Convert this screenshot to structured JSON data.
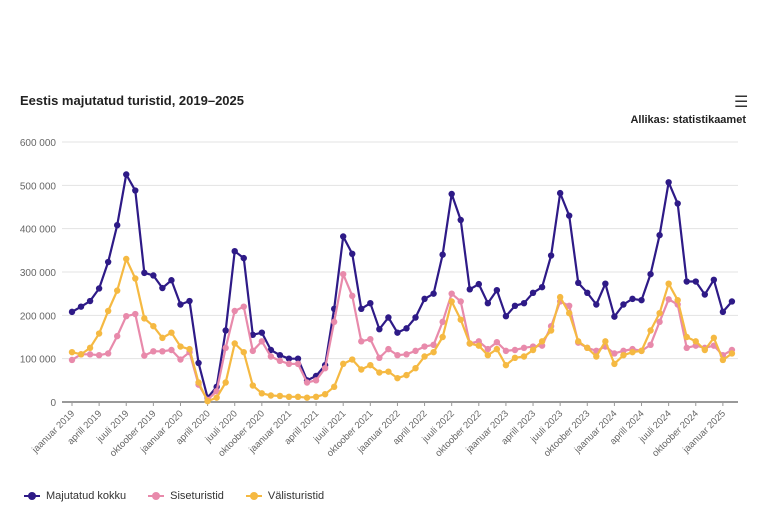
{
  "header": {
    "title": "Eestis majutatud turistid, 2019–2025",
    "source": "Allikas: statistikaamet",
    "menu_icon": "hamburger-menu-icon"
  },
  "chart_data": {
    "type": "line",
    "title": "Eestis majutatud turistid, 2019–2025",
    "xlabel": "",
    "ylabel": "",
    "ylim": [
      0,
      600000
    ],
    "yticks": [
      0,
      100000,
      200000,
      300000,
      400000,
      500000,
      600000
    ],
    "ytick_labels": [
      "0",
      "100 000",
      "200 000",
      "300 000",
      "400 000",
      "500 000",
      "600 000"
    ],
    "x_start": "2019-01",
    "x_end": "2025-02",
    "x_step": "month",
    "xtick_labels": [
      "jaanuar 2019",
      "aprill 2019",
      "juuli 2019",
      "oktoober 2019",
      "jaanuar 2020",
      "aprill 2020",
      "juuli 2020",
      "oktoober 2020",
      "jaanuar 2021",
      "aprill 2021",
      "juuli 2021",
      "oktoober 2021",
      "jaanuar 2022",
      "aprill 2022",
      "juuli 2022",
      "oktoober 2022",
      "jaanuar 2023",
      "aprill 2023",
      "juuli 2023",
      "oktoober 2023",
      "jaanuar 2024",
      "aprill 2024",
      "juuli 2024",
      "oktoober 2024",
      "jaanuar 2025"
    ],
    "grid": true,
    "legend_position": "bottom-left",
    "series": [
      {
        "name": "Majutatud kokku",
        "color": "#2e1a87",
        "values": [
          208000,
          220000,
          233000,
          262000,
          323000,
          408000,
          525000,
          488000,
          298000,
          292000,
          263000,
          281000,
          225000,
          233000,
          90000,
          10000,
          35000,
          165000,
          348000,
          332000,
          155000,
          160000,
          120000,
          108000,
          100000,
          100000,
          50000,
          60000,
          85000,
          215000,
          382000,
          342000,
          215000,
          228000,
          168000,
          195000,
          160000,
          170000,
          195000,
          238000,
          250000,
          340000,
          480000,
          420000,
          260000,
          272000,
          228000,
          258000,
          198000,
          222000,
          228000,
          252000,
          265000,
          338000,
          482000,
          430000,
          275000,
          252000,
          225000,
          273000,
          197000,
          225000,
          238000,
          235000,
          295000,
          385000,
          507000,
          458000,
          278000,
          278000,
          248000,
          282000,
          208000,
          232000
        ]
      },
      {
        "name": "Siseturistid",
        "color": "#e88aab",
        "values": [
          97000,
          110000,
          110000,
          108000,
          112000,
          152000,
          198000,
          203000,
          107000,
          117000,
          117000,
          120000,
          98000,
          115000,
          40000,
          5000,
          25000,
          125000,
          210000,
          220000,
          118000,
          140000,
          105000,
          95000,
          88000,
          88000,
          45000,
          50000,
          78000,
          185000,
          295000,
          245000,
          140000,
          145000,
          102000,
          122000,
          108000,
          110000,
          118000,
          128000,
          132000,
          185000,
          250000,
          232000,
          135000,
          140000,
          122000,
          138000,
          118000,
          120000,
          125000,
          128000,
          130000,
          175000,
          232000,
          222000,
          137000,
          125000,
          118000,
          128000,
          112000,
          118000,
          122000,
          118000,
          132000,
          185000,
          237000,
          225000,
          125000,
          130000,
          125000,
          130000,
          108000,
          120000
        ]
      },
      {
        "name": "Välisturistid",
        "color": "#f5b942",
        "values": [
          115000,
          110000,
          125000,
          158000,
          210000,
          257000,
          330000,
          285000,
          193000,
          175000,
          148000,
          160000,
          128000,
          122000,
          45000,
          2000,
          10000,
          45000,
          135000,
          115000,
          38000,
          20000,
          15000,
          14000,
          12000,
          12000,
          10000,
          12000,
          18000,
          35000,
          88000,
          98000,
          75000,
          85000,
          68000,
          70000,
          55000,
          62000,
          78000,
          105000,
          115000,
          150000,
          232000,
          190000,
          135000,
          130000,
          108000,
          122000,
          85000,
          102000,
          105000,
          120000,
          140000,
          165000,
          242000,
          205000,
          140000,
          125000,
          105000,
          140000,
          88000,
          108000,
          115000,
          118000,
          165000,
          205000,
          273000,
          235000,
          150000,
          140000,
          120000,
          148000,
          97000,
          112000
        ]
      }
    ]
  }
}
